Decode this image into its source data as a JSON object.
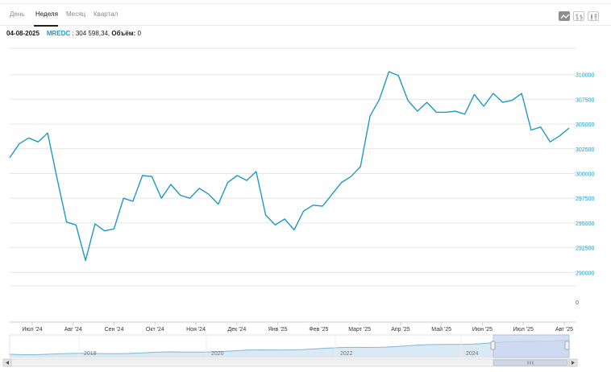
{
  "tabs": [
    "День",
    "Неделя",
    "Месяц",
    "Квартал"
  ],
  "active_tab": "Неделя",
  "info": {
    "date": "04-08-2025",
    "ticker": "MREDC",
    "separator": " : ",
    "value": "304 598,34",
    "volume_label": "Объём:",
    "volume_value": "0"
  },
  "toolbar_icons": [
    "line-chart-icon",
    "ohlc-bars-icon",
    "candlestick-icon"
  ],
  "colors": {
    "line": "#1e9ac0",
    "axis_label": "#1e9ac0",
    "grid": "#e6e6e6",
    "navigator_fill": "#dbe9f5",
    "navigator_mask": "#c9d6f0"
  },
  "chart_data": {
    "type": "line",
    "series": [
      {
        "values": [
          301600,
          303000,
          303600,
          303200,
          304100,
          299500,
          295100,
          294800,
          291200,
          294900,
          294200,
          294400,
          297500,
          297200,
          299800,
          299700,
          297500,
          298900,
          297800,
          297500,
          298500,
          297900,
          296900,
          299100,
          299800,
          299300,
          300200,
          295800,
          294800,
          295400,
          294300,
          296200,
          296800,
          296700,
          297900,
          299100,
          299700,
          300700,
          305800,
          307500,
          310300,
          309900,
          307400,
          306300,
          307200,
          306200,
          306200,
          306300,
          306000,
          308000,
          306800,
          308100,
          307200,
          307400,
          308100,
          304400,
          304700,
          303200,
          303800,
          304600
        ]
      }
    ],
    "x_labels": [
      "Июл '24",
      "Авг '24",
      "Сен '24",
      "Окт '24",
      "Ноя '24",
      "Дек '24",
      "Янв '25",
      "Фев '25",
      "Март '25",
      "Апр '25",
      "Май '25",
      "Июн '25",
      "Июл '25",
      "Авг '25"
    ],
    "y_ticks": [
      "310000",
      "307500",
      "305000",
      "302500",
      "300000",
      "297500",
      "295000",
      "292500",
      "290000"
    ],
    "y_range": [
      287500,
      312500
    ],
    "volume_tick": "0",
    "navigator_years": [
      "2018",
      "2020",
      "2022",
      "2024"
    ],
    "grid": true
  }
}
